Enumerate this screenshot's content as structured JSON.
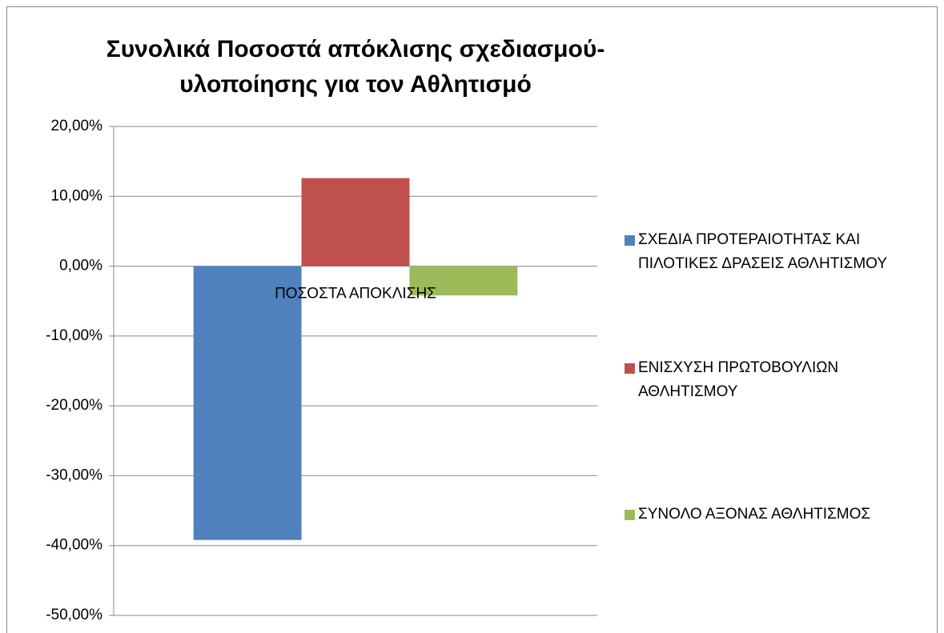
{
  "chart_data": {
    "type": "bar",
    "title": "Συνολικά Ποσοστά απόκλισης σχεδιασμού-υλοποίησης για τον Αθλητισμό",
    "categories": [
      "ΠΟΣΟΣΤΑ  ΑΠΟΚΛΙΣΗΣ"
    ],
    "series": [
      {
        "name": "ΣΧΕΔΙΑ ΠΡΟΤΕΡΑΙΟΤΗΤΑΣ ΚΑΙ ΠΙΛΟΤΙΚΕΣ ΔΡΑΣΕΙΣ ΑΘΛΗΤΙΣΜΟΥ",
        "color": "#4f81bd",
        "values": [
          -39.2
        ]
      },
      {
        "name": "ΕΝΙΣΧΥΣΗ ΠΡΩΤΟΒΟΥΛΙΩΝ ΑΘΛΗΤΙΣΜΟΥ",
        "color": "#c0504d",
        "values": [
          12.6
        ]
      },
      {
        "name": "ΣΥΝΟΛΟ ΑΞΟΝΑΣ  ΑΘΛΗΤΙΣΜΟΣ",
        "color": "#9bbb59",
        "values": [
          -4.2
        ]
      }
    ],
    "ylim": [
      -50,
      20
    ],
    "yticks": [
      {
        "value": -50,
        "label": "-50,00%"
      },
      {
        "value": -40,
        "label": "-40,00%"
      },
      {
        "value": -30,
        "label": "-30,00%"
      },
      {
        "value": -20,
        "label": "-20,00%"
      },
      {
        "value": -10,
        "label": "-10,00%"
      },
      {
        "value": 0,
        "label": "0,00%"
      },
      {
        "value": 10,
        "label": "10,00%"
      },
      {
        "value": 20,
        "label": "20,00%"
      }
    ],
    "grid": true,
    "legend": "right"
  }
}
